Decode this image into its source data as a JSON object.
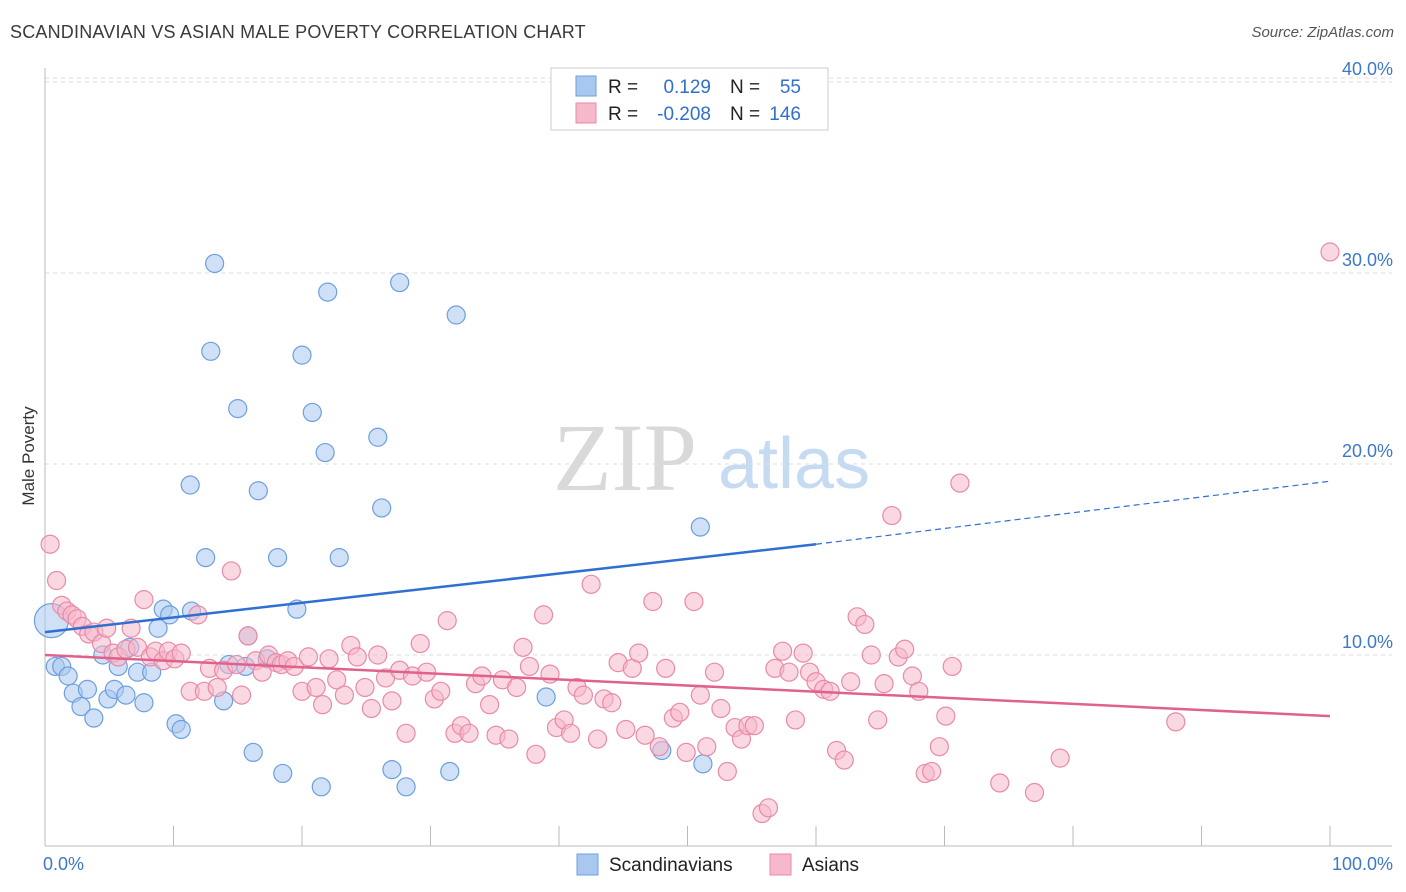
{
  "header": {
    "title": "SCANDINAVIAN VS ASIAN MALE POVERTY CORRELATION CHART",
    "source": "Source: ZipAtlas.com"
  },
  "watermark": {
    "zip": "ZIP",
    "atlas": "atlas"
  },
  "legend": {
    "row1": {
      "r_label": "R =",
      "r_value": "0.129",
      "n_label": "N =",
      "n_value": "55",
      "color": "#a9c8f0"
    },
    "row2": {
      "r_label": "R =",
      "r_value": "-0.208",
      "n_label": "N =",
      "n_value": "146",
      "color": "#f6b8cb"
    }
  },
  "bottom_legend": [
    {
      "label": "Scandinavians",
      "color": "#a9c8f0"
    },
    {
      "label": "Asians",
      "color": "#f6b8cb"
    }
  ],
  "chart_data": {
    "type": "scatter",
    "title": "SCANDINAVIAN VS ASIAN MALE POVERTY CORRELATION CHART",
    "xlabel": "",
    "ylabel": "Male Poverty",
    "xlim": [
      0,
      100
    ],
    "ylim": [
      0,
      42
    ],
    "x_tick_labels": [
      "0.0%",
      "100.0%"
    ],
    "y_ticks": [
      10,
      20,
      30,
      40
    ],
    "y_tick_labels": [
      "10.0%",
      "20.0%",
      "30.0%",
      "40.0%"
    ],
    "grid": "horizontal dashed",
    "legend_position": "top-center",
    "series": [
      {
        "name": "Scandinavians",
        "color": "#a9c8f0",
        "stroke": "#6d9fde",
        "trend": {
          "x": [
            0,
            60
          ],
          "y": [
            11.2,
            15.8
          ],
          "dashed_to": [
            100,
            19.1
          ],
          "color": "#2f6fd1"
        },
        "points": [
          [
            0.5,
            11.8
          ],
          [
            0.8,
            9.4
          ],
          [
            1.3,
            9.4
          ],
          [
            1.8,
            8.9
          ],
          [
            2.2,
            8.0
          ],
          [
            2.8,
            7.3
          ],
          [
            3.3,
            8.2
          ],
          [
            3.8,
            6.7
          ],
          [
            4.5,
            10.0
          ],
          [
            4.9,
            7.7
          ],
          [
            5.4,
            8.2
          ],
          [
            5.7,
            9.4
          ],
          [
            6.3,
            7.9
          ],
          [
            6.6,
            10.4
          ],
          [
            7.2,
            9.1
          ],
          [
            7.7,
            7.5
          ],
          [
            8.3,
            9.1
          ],
          [
            8.8,
            11.4
          ],
          [
            9.2,
            12.4
          ],
          [
            9.7,
            12.1
          ],
          [
            10.2,
            6.4
          ],
          [
            10.6,
            6.1
          ],
          [
            11.4,
            12.3
          ],
          [
            11.3,
            18.9
          ],
          [
            12.5,
            15.1
          ],
          [
            12.9,
            25.9
          ],
          [
            13.2,
            30.5
          ],
          [
            13.9,
            7.6
          ],
          [
            14.3,
            9.5
          ],
          [
            15.0,
            22.9
          ],
          [
            15.6,
            9.4
          ],
          [
            15.8,
            11.0
          ],
          [
            16.2,
            4.9
          ],
          [
            16.6,
            18.6
          ],
          [
            17.3,
            9.8
          ],
          [
            18.1,
            15.1
          ],
          [
            18.5,
            3.8
          ],
          [
            19.6,
            12.4
          ],
          [
            20.0,
            25.7
          ],
          [
            20.8,
            22.7
          ],
          [
            21.5,
            3.1
          ],
          [
            21.8,
            20.6
          ],
          [
            22.0,
            29.0
          ],
          [
            22.9,
            15.1
          ],
          [
            25.9,
            21.4
          ],
          [
            26.2,
            17.7
          ],
          [
            27.0,
            4.0
          ],
          [
            27.6,
            29.5
          ],
          [
            28.1,
            3.1
          ],
          [
            31.5,
            3.9
          ],
          [
            32.0,
            27.8
          ],
          [
            39.0,
            7.8
          ],
          [
            48.0,
            5.0
          ],
          [
            51.2,
            4.3
          ],
          [
            51.0,
            16.7
          ]
        ]
      },
      {
        "name": "Asians",
        "color": "#f6b8cb",
        "stroke": "#e98aa7",
        "trend": {
          "x": [
            0,
            100
          ],
          "y": [
            10.0,
            6.8
          ],
          "color": "#e0628c"
        },
        "points": [
          [
            0.4,
            15.8
          ],
          [
            0.9,
            13.9
          ],
          [
            1.3,
            12.6
          ],
          [
            1.7,
            12.3
          ],
          [
            2.1,
            12.1
          ],
          [
            2.5,
            11.9
          ],
          [
            2.9,
            11.5
          ],
          [
            3.4,
            11.1
          ],
          [
            3.8,
            11.2
          ],
          [
            4.4,
            10.6
          ],
          [
            4.8,
            11.4
          ],
          [
            5.3,
            10.1
          ],
          [
            5.7,
            9.9
          ],
          [
            6.3,
            10.3
          ],
          [
            6.7,
            11.4
          ],
          [
            7.2,
            10.4
          ],
          [
            7.7,
            12.9
          ],
          [
            8.2,
            9.9
          ],
          [
            8.6,
            10.2
          ],
          [
            9.2,
            9.7
          ],
          [
            9.6,
            10.2
          ],
          [
            10.1,
            9.8
          ],
          [
            10.6,
            10.1
          ],
          [
            11.3,
            8.1
          ],
          [
            11.9,
            12.1
          ],
          [
            12.4,
            8.1
          ],
          [
            12.8,
            9.3
          ],
          [
            13.4,
            8.3
          ],
          [
            13.9,
            9.2
          ],
          [
            14.5,
            14.4
          ],
          [
            14.9,
            9.5
          ],
          [
            15.3,
            7.9
          ],
          [
            15.8,
            11.0
          ],
          [
            16.4,
            9.7
          ],
          [
            16.9,
            9.1
          ],
          [
            17.4,
            10.0
          ],
          [
            18.0,
            9.6
          ],
          [
            18.4,
            9.5
          ],
          [
            18.9,
            9.7
          ],
          [
            19.4,
            9.4
          ],
          [
            20.0,
            8.1
          ],
          [
            20.5,
            9.9
          ],
          [
            21.1,
            8.3
          ],
          [
            21.6,
            7.4
          ],
          [
            22.1,
            9.8
          ],
          [
            22.7,
            8.7
          ],
          [
            23.3,
            7.9
          ],
          [
            23.8,
            10.5
          ],
          [
            24.3,
            9.9
          ],
          [
            24.9,
            8.3
          ],
          [
            25.4,
            7.2
          ],
          [
            25.9,
            10.0
          ],
          [
            26.5,
            8.8
          ],
          [
            27.0,
            7.6
          ],
          [
            27.6,
            9.2
          ],
          [
            28.1,
            5.9
          ],
          [
            28.6,
            8.9
          ],
          [
            29.2,
            10.6
          ],
          [
            29.7,
            9.1
          ],
          [
            30.3,
            7.7
          ],
          [
            30.8,
            8.1
          ],
          [
            31.3,
            11.8
          ],
          [
            31.9,
            5.9
          ],
          [
            32.4,
            6.3
          ],
          [
            33.0,
            5.9
          ],
          [
            33.5,
            8.5
          ],
          [
            34.0,
            8.9
          ],
          [
            34.6,
            7.4
          ],
          [
            35.1,
            5.8
          ],
          [
            35.6,
            8.7
          ],
          [
            36.1,
            5.6
          ],
          [
            36.7,
            8.3
          ],
          [
            37.2,
            10.4
          ],
          [
            37.7,
            9.4
          ],
          [
            38.2,
            4.8
          ],
          [
            38.8,
            12.1
          ],
          [
            39.3,
            9.0
          ],
          [
            39.8,
            6.2
          ],
          [
            40.4,
            6.6
          ],
          [
            40.9,
            5.9
          ],
          [
            41.4,
            8.3
          ],
          [
            41.9,
            7.9
          ],
          [
            42.5,
            13.7
          ],
          [
            43.0,
            5.6
          ],
          [
            43.5,
            7.7
          ],
          [
            44.1,
            7.5
          ],
          [
            44.6,
            9.6
          ],
          [
            45.2,
            6.1
          ],
          [
            45.7,
            9.3
          ],
          [
            46.2,
            10.1
          ],
          [
            46.7,
            5.8
          ],
          [
            47.3,
            12.8
          ],
          [
            47.8,
            5.2
          ],
          [
            48.3,
            9.3
          ],
          [
            48.9,
            6.7
          ],
          [
            49.4,
            7.0
          ],
          [
            49.9,
            4.9
          ],
          [
            50.5,
            12.8
          ],
          [
            51.0,
            7.9
          ],
          [
            51.5,
            5.2
          ],
          [
            52.1,
            9.1
          ],
          [
            52.6,
            7.2
          ],
          [
            53.1,
            3.9
          ],
          [
            53.7,
            6.2
          ],
          [
            54.2,
            5.6
          ],
          [
            54.7,
            6.3
          ],
          [
            55.2,
            6.3
          ],
          [
            55.8,
            1.7
          ],
          [
            56.3,
            2.0
          ],
          [
            56.8,
            9.3
          ],
          [
            57.4,
            10.2
          ],
          [
            57.9,
            9.1
          ],
          [
            58.4,
            6.6
          ],
          [
            59.0,
            10.1
          ],
          [
            59.5,
            9.1
          ],
          [
            60.0,
            8.6
          ],
          [
            60.6,
            8.2
          ],
          [
            61.1,
            8.1
          ],
          [
            61.6,
            5.0
          ],
          [
            62.2,
            4.5
          ],
          [
            62.7,
            8.6
          ],
          [
            63.2,
            12.0
          ],
          [
            63.8,
            11.6
          ],
          [
            64.3,
            10.0
          ],
          [
            64.8,
            6.6
          ],
          [
            65.3,
            8.5
          ],
          [
            65.9,
            17.3
          ],
          [
            66.4,
            9.9
          ],
          [
            66.9,
            10.3
          ],
          [
            67.5,
            8.9
          ],
          [
            68.0,
            8.1
          ],
          [
            68.5,
            3.8
          ],
          [
            69.0,
            3.9
          ],
          [
            69.6,
            5.2
          ],
          [
            70.1,
            6.8
          ],
          [
            70.6,
            9.4
          ],
          [
            71.2,
            19.0
          ],
          [
            74.3,
            3.3
          ],
          [
            77.0,
            2.8
          ],
          [
            79.0,
            4.6
          ],
          [
            88.0,
            6.5
          ],
          [
            100.0,
            31.1
          ]
        ]
      }
    ]
  }
}
